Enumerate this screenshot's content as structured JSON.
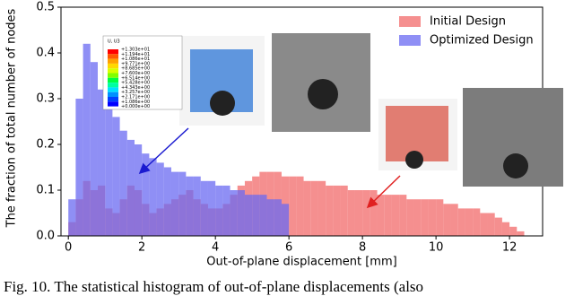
{
  "chart_data": {
    "type": "histogram",
    "xlabel": "Out-of-plane displacement [mm]",
    "ylabel": "The fraction of total number of nodes",
    "bins": [
      0,
      0.2,
      0.4,
      0.6,
      0.8,
      1,
      1.2,
      1.4,
      1.6,
      1.8,
      2,
      2.2,
      2.4,
      2.6,
      2.8,
      3,
      3.2,
      3.4,
      3.6,
      3.8,
      4,
      4.2,
      4.4,
      4.6,
      4.8,
      5,
      5.2,
      5.4,
      5.6,
      5.8,
      6,
      6.2,
      6.4,
      6.6,
      6.8,
      7,
      7.2,
      7.4,
      7.6,
      7.8,
      8,
      8.2,
      8.4,
      8.6,
      8.8,
      9,
      9.2,
      9.4,
      9.6,
      9.8,
      10,
      10.2,
      10.4,
      10.6,
      10.8,
      11,
      11.2,
      11.4,
      11.6,
      11.8,
      12,
      12.2,
      12.4
    ],
    "series": [
      {
        "name": "Initial Design",
        "color": "#f26a6a",
        "values": [
          0.03,
          0.08,
          0.12,
          0.1,
          0.11,
          0.06,
          0.05,
          0.08,
          0.11,
          0.1,
          0.07,
          0.05,
          0.06,
          0.07,
          0.08,
          0.09,
          0.1,
          0.08,
          0.07,
          0.06,
          0.06,
          0.07,
          0.09,
          0.11,
          0.12,
          0.13,
          0.14,
          0.14,
          0.14,
          0.13,
          0.13,
          0.13,
          0.12,
          0.12,
          0.12,
          0.11,
          0.11,
          0.11,
          0.1,
          0.1,
          0.1,
          0.1,
          0.09,
          0.09,
          0.09,
          0.09,
          0.08,
          0.08,
          0.08,
          0.08,
          0.08,
          0.07,
          0.07,
          0.06,
          0.06,
          0.06,
          0.05,
          0.05,
          0.04,
          0.03,
          0.02,
          0.01
        ]
      },
      {
        "name": "Optimized Design",
        "color": "#6a6af2",
        "values": [
          0.08,
          0.3,
          0.42,
          0.38,
          0.32,
          0.3,
          0.26,
          0.23,
          0.21,
          0.2,
          0.18,
          0.17,
          0.16,
          0.15,
          0.14,
          0.14,
          0.13,
          0.13,
          0.12,
          0.12,
          0.11,
          0.11,
          0.1,
          0.1,
          0.09,
          0.09,
          0.09,
          0.08,
          0.08,
          0.07,
          0,
          0,
          0,
          0,
          0,
          0,
          0,
          0,
          0,
          0,
          0,
          0,
          0,
          0,
          0,
          0,
          0,
          0,
          0,
          0,
          0,
          0,
          0,
          0,
          0,
          0,
          0,
          0,
          0,
          0,
          0,
          0
        ]
      }
    ],
    "xlim": [
      -0.2,
      12.9
    ],
    "ylim": [
      0,
      0.5
    ],
    "xticks": [
      0,
      2,
      4,
      6,
      8,
      10,
      12
    ],
    "yticks": [
      {
        "value": 0,
        "label": "0.0"
      },
      0.1,
      0.2,
      0.3,
      0.4,
      0.5
    ],
    "legend": "upper right",
    "colorbar": {
      "title": "U, U3",
      "labels": [
        "+1.303e+01",
        "+1.194e+01",
        "+1.086e+01",
        "+9.771e+00",
        "+8.685e+00",
        "+7.600e+00",
        "+6.514e+00",
        "+5.428e+00",
        "+4.343e+00",
        "+3.257e+00",
        "+2.171e+00",
        "+1.086e+00",
        "+0.000e+00"
      ]
    },
    "caption": "Fig. 10.   The statistical histogram of out-of-plane displacements (also"
  }
}
